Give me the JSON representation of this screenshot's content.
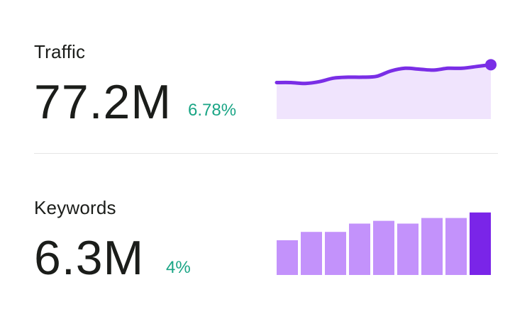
{
  "traffic": {
    "title": "Traffic",
    "value": "77.2M",
    "change": "6.78%"
  },
  "keywords": {
    "title": "Keywords",
    "value": "6.3M",
    "change": "4%"
  },
  "colors": {
    "accent": "#7a2ee6",
    "accent_fill": "#f0e4fd",
    "bar": "#c392fb",
    "bar_highlight": "#7a25e8",
    "positive": "#1aa585",
    "divider": "#e6e6e6"
  },
  "chart_data": [
    {
      "type": "area",
      "series": [
        {
          "values": [
            41,
            41,
            40,
            42,
            46,
            47,
            47,
            48,
            54,
            57,
            56,
            55,
            57,
            57,
            59,
            61
          ]
        }
      ],
      "ylim": [
        0,
        70
      ]
    },
    {
      "type": "bar",
      "series": [
        {
          "values": [
            50,
            62,
            62,
            74,
            78,
            74,
            82,
            82,
            90
          ]
        }
      ],
      "ylim": [
        0,
        100
      ]
    }
  ]
}
